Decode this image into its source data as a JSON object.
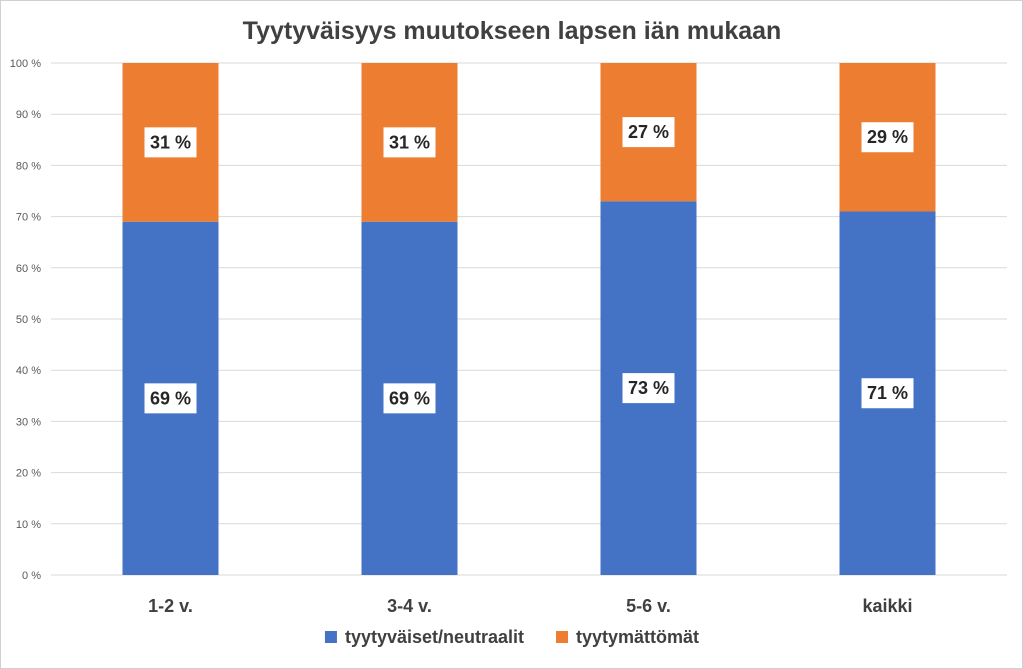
{
  "chart_data": {
    "type": "bar",
    "stacked": true,
    "title": "Tyytyväisyys muutokseen lapsen iän mukaan",
    "categories": [
      "1-2 v.",
      "3-4 v.",
      "5-6 v.",
      "kaikki"
    ],
    "series": [
      {
        "name": "tyytyväiset/neutraalit",
        "color": "#4472C4",
        "values": [
          69,
          69,
          73,
          71
        ],
        "labels": [
          "69 %",
          "69 %",
          "73 %",
          "71 %"
        ]
      },
      {
        "name": "tyytymättömät",
        "color": "#ED7D31",
        "values": [
          31,
          31,
          27,
          29
        ],
        "labels": [
          "31 %",
          "31 %",
          "27 %",
          "29 %"
        ]
      }
    ],
    "ylim": [
      0,
      100
    ],
    "yticks": [
      0,
      10,
      20,
      30,
      40,
      50,
      60,
      70,
      80,
      90,
      100
    ],
    "ytick_labels": [
      "0 %",
      "10 %",
      "20 %",
      "30 %",
      "40 %",
      "50 %",
      "60 %",
      "70 %",
      "80 %",
      "90 %",
      "100 %"
    ],
    "xlabel": "",
    "ylabel": "",
    "grid": true,
    "legend_position": "bottom"
  }
}
